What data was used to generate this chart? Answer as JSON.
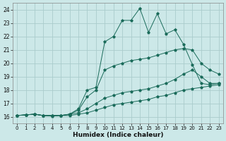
{
  "xlabel": "Humidex (Indice chaleur)",
  "bg_color": "#cce8e8",
  "grid_color": "#aacccc",
  "line_color": "#1a6b5a",
  "xlim": [
    -0.5,
    23.5
  ],
  "ylim": [
    15.5,
    24.5
  ],
  "yticks": [
    16,
    17,
    18,
    19,
    20,
    21,
    22,
    23,
    24
  ],
  "xticks": [
    0,
    1,
    2,
    3,
    4,
    5,
    6,
    7,
    8,
    9,
    10,
    11,
    12,
    13,
    14,
    15,
    16,
    17,
    18,
    19,
    20,
    21,
    22,
    23
  ],
  "xtick_labels": [
    "0",
    "1",
    "2",
    "3",
    "4",
    "5",
    "6",
    "7",
    "8",
    "9",
    "10",
    "11",
    "12",
    "13",
    "14",
    "15",
    "16",
    "17",
    "18",
    "19",
    "20",
    "21",
    "22",
    "23"
  ],
  "series": [
    {
      "x": [
        0,
        1,
        2,
        3,
        4,
        5,
        6,
        7,
        8,
        9,
        10,
        11,
        12,
        13,
        14,
        15,
        16,
        17,
        18,
        19,
        20,
        21,
        22,
        23
      ],
      "y": [
        16.1,
        16.15,
        16.2,
        16.1,
        16.1,
        16.1,
        16.1,
        16.2,
        16.3,
        16.5,
        16.7,
        16.9,
        17.0,
        17.1,
        17.2,
        17.3,
        17.5,
        17.6,
        17.8,
        18.0,
        18.1,
        18.2,
        18.3,
        18.4
      ]
    },
    {
      "x": [
        0,
        1,
        2,
        3,
        4,
        5,
        6,
        7,
        8,
        9,
        10,
        11,
        12,
        13,
        14,
        15,
        16,
        17,
        18,
        19,
        20,
        21,
        22,
        23
      ],
      "y": [
        16.1,
        16.15,
        16.2,
        16.1,
        16.1,
        16.1,
        16.2,
        16.3,
        16.6,
        17.0,
        17.4,
        17.6,
        17.8,
        17.9,
        18.0,
        18.1,
        18.3,
        18.5,
        18.8,
        19.2,
        19.5,
        19.0,
        18.5,
        18.5
      ]
    },
    {
      "x": [
        0,
        1,
        2,
        3,
        4,
        5,
        6,
        7,
        8,
        9,
        10,
        11,
        12,
        13,
        14,
        15,
        16,
        17,
        18,
        19,
        20,
        21,
        22,
        23
      ],
      "y": [
        16.1,
        16.15,
        16.2,
        16.1,
        16.1,
        16.1,
        16.2,
        16.5,
        17.5,
        18.0,
        19.5,
        19.8,
        20.0,
        20.2,
        20.3,
        20.4,
        20.6,
        20.8,
        21.0,
        21.1,
        21.0,
        20.0,
        19.5,
        19.2
      ]
    },
    {
      "x": [
        0,
        1,
        2,
        3,
        4,
        5,
        6,
        7,
        8,
        9,
        10,
        11,
        12,
        13,
        14,
        15,
        16,
        17,
        18,
        19,
        20,
        21,
        22,
        23
      ],
      "y": [
        16.1,
        16.15,
        16.2,
        16.1,
        16.05,
        16.1,
        16.2,
        16.6,
        18.0,
        18.2,
        21.6,
        22.0,
        23.2,
        23.2,
        24.1,
        22.3,
        23.7,
        22.2,
        22.5,
        21.4,
        19.9,
        18.5,
        18.4,
        18.5
      ]
    }
  ]
}
